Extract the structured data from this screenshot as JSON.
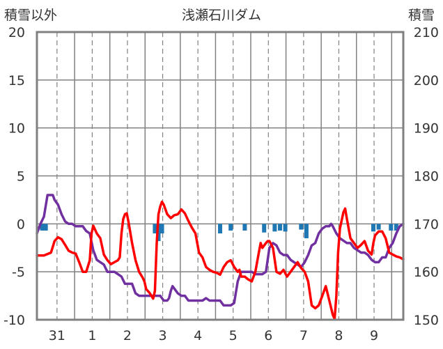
{
  "chart_data": {
    "type": "line",
    "title": "浅瀬石川ダム",
    "ylabel_left": "積雪以外",
    "ylabel_right": "積雪",
    "ylim_left": [
      -10,
      20
    ],
    "ylim_right": [
      150,
      210
    ],
    "yticks_left": [
      "20",
      "15",
      "10",
      "5",
      "0",
      "-5",
      "-10"
    ],
    "yticks_right": [
      "210",
      "200",
      "190",
      "180",
      "170",
      "160",
      "150"
    ],
    "xlim": [
      0,
      10.4
    ],
    "day_ticks": [
      {
        "pos": 0.57,
        "label": "31"
      },
      {
        "pos": 1.57,
        "label": "1"
      },
      {
        "pos": 2.57,
        "label": "2"
      },
      {
        "pos": 3.57,
        "label": "3"
      },
      {
        "pos": 4.57,
        "label": "4"
      },
      {
        "pos": 5.57,
        "label": "5"
      },
      {
        "pos": 6.57,
        "label": "6"
      },
      {
        "pos": 7.57,
        "label": "7"
      },
      {
        "pos": 8.57,
        "label": "8"
      },
      {
        "pos": 9.57,
        "label": "9"
      }
    ],
    "dashed_grid_x": [
      0.57,
      1.57,
      2.57,
      3.57,
      4.57,
      5.57,
      6.57,
      7.57,
      8.57,
      9.57
    ],
    "solid_grid_x": [
      1.07,
      2.07,
      3.07,
      4.07,
      5.07,
      6.07,
      7.07,
      8.07,
      9.07,
      10.07
    ],
    "colors": {
      "temperature": "#ff0000",
      "snow_depth": "#7030a0",
      "precipitation": "#1f77b4",
      "grid": "#808080",
      "frame": "#808080"
    },
    "series": [
      {
        "axis": "left",
        "color": "#ff0000",
        "points": [
          [
            0.0,
            -3.3
          ],
          [
            0.2,
            -3.3
          ],
          [
            0.4,
            -3.0
          ],
          [
            0.5,
            -1.8
          ],
          [
            0.6,
            -1.4
          ],
          [
            0.7,
            -1.6
          ],
          [
            0.8,
            -2.2
          ],
          [
            0.9,
            -2.8
          ],
          [
            1.0,
            -3.0
          ],
          [
            1.1,
            -3.1
          ],
          [
            1.2,
            -4.0
          ],
          [
            1.3,
            -5.0
          ],
          [
            1.4,
            -5.0
          ],
          [
            1.5,
            -3.8
          ],
          [
            1.55,
            -1.0
          ],
          [
            1.6,
            -0.2
          ],
          [
            1.7,
            -1.0
          ],
          [
            1.8,
            -1.5
          ],
          [
            1.9,
            -3.2
          ],
          [
            2.0,
            -3.8
          ],
          [
            2.1,
            -4.2
          ],
          [
            2.2,
            -4.0
          ],
          [
            2.3,
            -3.8
          ],
          [
            2.35,
            -3.5
          ],
          [
            2.4,
            -1.0
          ],
          [
            2.45,
            0.5
          ],
          [
            2.5,
            1.0
          ],
          [
            2.55,
            1.1
          ],
          [
            2.6,
            0.2
          ],
          [
            2.7,
            -2.0
          ],
          [
            2.8,
            -3.8
          ],
          [
            2.9,
            -5.0
          ],
          [
            3.0,
            -5.6
          ],
          [
            3.05,
            -6.0
          ],
          [
            3.1,
            -6.8
          ],
          [
            3.2,
            -7.2
          ],
          [
            3.3,
            -7.8
          ],
          [
            3.35,
            -7.0
          ],
          [
            3.4,
            -2.0
          ],
          [
            3.45,
            1.0
          ],
          [
            3.5,
            1.8
          ],
          [
            3.55,
            2.3
          ],
          [
            3.6,
            2.0
          ],
          [
            3.7,
            1.0
          ],
          [
            3.8,
            0.6
          ],
          [
            3.9,
            0.9
          ],
          [
            4.0,
            1.0
          ],
          [
            4.1,
            1.5
          ],
          [
            4.2,
            1.1
          ],
          [
            4.3,
            0.3
          ],
          [
            4.4,
            -0.4
          ],
          [
            4.5,
            -1.0
          ],
          [
            4.6,
            -3.0
          ],
          [
            4.7,
            -3.5
          ],
          [
            4.8,
            -4.5
          ],
          [
            4.9,
            -4.8
          ],
          [
            5.0,
            -5.0
          ],
          [
            5.1,
            -5.1
          ],
          [
            5.2,
            -5.3
          ],
          [
            5.3,
            -4.5
          ],
          [
            5.4,
            -4.0
          ],
          [
            5.5,
            -3.8
          ],
          [
            5.6,
            -4.5
          ],
          [
            5.7,
            -5.0
          ],
          [
            5.75,
            -4.8
          ],
          [
            5.8,
            -5.5
          ],
          [
            5.9,
            -5.5
          ],
          [
            6.0,
            -5.8
          ],
          [
            6.1,
            -6.0
          ],
          [
            6.2,
            -5.0
          ],
          [
            6.3,
            -3.0
          ],
          [
            6.35,
            -2.0
          ],
          [
            6.4,
            -2.5
          ],
          [
            6.5,
            -2.0
          ],
          [
            6.55,
            -1.8
          ],
          [
            6.6,
            -1.8
          ],
          [
            6.7,
            -2.5
          ],
          [
            6.8,
            -5.0
          ],
          [
            6.9,
            -5.2
          ],
          [
            7.0,
            -4.8
          ],
          [
            7.1,
            -5.5
          ],
          [
            7.2,
            -5.0
          ],
          [
            7.3,
            -4.5
          ],
          [
            7.4,
            -4.0
          ],
          [
            7.5,
            -4.6
          ],
          [
            7.6,
            -5.0
          ],
          [
            7.7,
            -6.0
          ],
          [
            7.8,
            -8.5
          ],
          [
            7.9,
            -8.8
          ],
          [
            8.0,
            -8.5
          ],
          [
            8.1,
            -7.5
          ],
          [
            8.2,
            -6.5
          ],
          [
            8.3,
            -8.0
          ],
          [
            8.4,
            -9.5
          ],
          [
            8.45,
            -9.9
          ],
          [
            8.5,
            -7.5
          ],
          [
            8.55,
            -3.0
          ],
          [
            8.6,
            -0.5
          ],
          [
            8.7,
            1.2
          ],
          [
            8.75,
            1.6
          ],
          [
            8.8,
            0.5
          ],
          [
            8.9,
            -1.5
          ],
          [
            9.0,
            -2.0
          ],
          [
            9.1,
            -2.5
          ],
          [
            9.2,
            -2.2
          ],
          [
            9.3,
            -1.8
          ],
          [
            9.4,
            -2.8
          ],
          [
            9.5,
            -3.2
          ],
          [
            9.55,
            -2.0
          ],
          [
            9.6,
            -1.2
          ],
          [
            9.7,
            -0.8
          ],
          [
            9.8,
            -0.8
          ],
          [
            9.9,
            -1.5
          ],
          [
            10.0,
            -3.0
          ],
          [
            10.1,
            -3.2
          ],
          [
            10.2,
            -3.4
          ],
          [
            10.3,
            -3.5
          ],
          [
            10.4,
            -3.7
          ]
        ]
      },
      {
        "axis": "right",
        "color": "#7030a0",
        "points": [
          [
            0.0,
            168.0
          ],
          [
            0.1,
            170.0
          ],
          [
            0.2,
            171.5
          ],
          [
            0.3,
            176.0
          ],
          [
            0.45,
            176.0
          ],
          [
            0.5,
            175.0
          ],
          [
            0.6,
            174.0
          ],
          [
            0.7,
            172.0
          ],
          [
            0.8,
            170.5
          ],
          [
            0.9,
            170.0
          ],
          [
            1.0,
            170.0
          ],
          [
            1.1,
            169.5
          ],
          [
            1.3,
            169.5
          ],
          [
            1.4,
            168.5
          ],
          [
            1.5,
            168.0
          ],
          [
            1.6,
            164.5
          ],
          [
            1.7,
            162.5
          ],
          [
            1.8,
            162.0
          ],
          [
            1.9,
            161.5
          ],
          [
            2.0,
            160.0
          ],
          [
            2.2,
            160.0
          ],
          [
            2.3,
            159.5
          ],
          [
            2.4,
            159.0
          ],
          [
            2.5,
            157.5
          ],
          [
            2.7,
            157.5
          ],
          [
            2.8,
            155.5
          ],
          [
            2.9,
            155.0
          ],
          [
            3.3,
            155.0
          ],
          [
            3.5,
            155.0
          ],
          [
            3.6,
            154.0
          ],
          [
            3.7,
            154.0
          ],
          [
            3.75,
            154.5
          ],
          [
            3.8,
            156.0
          ],
          [
            3.85,
            157.0
          ],
          [
            3.9,
            156.5
          ],
          [
            4.0,
            155.5
          ],
          [
            4.1,
            155.0
          ],
          [
            4.2,
            155.0
          ],
          [
            4.3,
            154.0
          ],
          [
            4.5,
            154.0
          ],
          [
            4.7,
            154.0
          ],
          [
            4.8,
            154.5
          ],
          [
            4.9,
            154.0
          ],
          [
            5.2,
            154.0
          ],
          [
            5.3,
            153.0
          ],
          [
            5.5,
            153.0
          ],
          [
            5.6,
            153.5
          ],
          [
            5.7,
            158.0
          ],
          [
            5.8,
            160.0
          ],
          [
            6.1,
            160.0
          ],
          [
            6.2,
            159.5
          ],
          [
            6.4,
            159.5
          ],
          [
            6.5,
            160.0
          ],
          [
            6.6,
            165.0
          ],
          [
            6.7,
            166.0
          ],
          [
            6.8,
            165.5
          ],
          [
            6.9,
            164.0
          ],
          [
            7.0,
            163.5
          ],
          [
            7.1,
            163.5
          ],
          [
            7.2,
            162.5
          ],
          [
            7.3,
            162.0
          ],
          [
            7.4,
            161.5
          ],
          [
            7.5,
            161.0
          ],
          [
            7.6,
            162.0
          ],
          [
            7.7,
            163.5
          ],
          [
            7.8,
            165.5
          ],
          [
            7.9,
            166.0
          ],
          [
            8.0,
            168.0
          ],
          [
            8.1,
            169.0
          ],
          [
            8.2,
            169.5
          ],
          [
            8.3,
            169.5
          ],
          [
            8.35,
            170.0
          ],
          [
            8.4,
            169.5
          ],
          [
            8.5,
            168.0
          ],
          [
            8.6,
            167.0
          ],
          [
            8.7,
            166.5
          ],
          [
            8.8,
            166.0
          ],
          [
            8.9,
            166.0
          ],
          [
            9.0,
            165.0
          ],
          [
            9.1,
            164.5
          ],
          [
            9.2,
            164.0
          ],
          [
            9.3,
            164.0
          ],
          [
            9.4,
            163.5
          ],
          [
            9.5,
            162.5
          ],
          [
            9.6,
            162.0
          ],
          [
            9.7,
            162.0
          ],
          [
            9.8,
            163.0
          ],
          [
            9.9,
            163.0
          ],
          [
            10.0,
            165.0
          ],
          [
            10.1,
            166.0
          ],
          [
            10.2,
            168.0
          ],
          [
            10.3,
            169.5
          ],
          [
            10.4,
            170.0
          ]
        ]
      }
    ],
    "precipitation_bars": [
      [
        0.15,
        0.7
      ],
      [
        0.25,
        0.7
      ],
      [
        3.35,
        1.0
      ],
      [
        3.45,
        1.8
      ],
      [
        3.55,
        1.0
      ],
      [
        5.2,
        1.0
      ],
      [
        5.5,
        0.7
      ],
      [
        5.9,
        0.7
      ],
      [
        6.45,
        0.9
      ],
      [
        6.75,
        0.8
      ],
      [
        6.9,
        0.7
      ],
      [
        7.05,
        0.8
      ],
      [
        7.5,
        0.6
      ],
      [
        7.65,
        1.5
      ],
      [
        9.55,
        0.8
      ],
      [
        9.7,
        0.6
      ],
      [
        10.05,
        0.7
      ],
      [
        10.2,
        0.7
      ]
    ]
  }
}
